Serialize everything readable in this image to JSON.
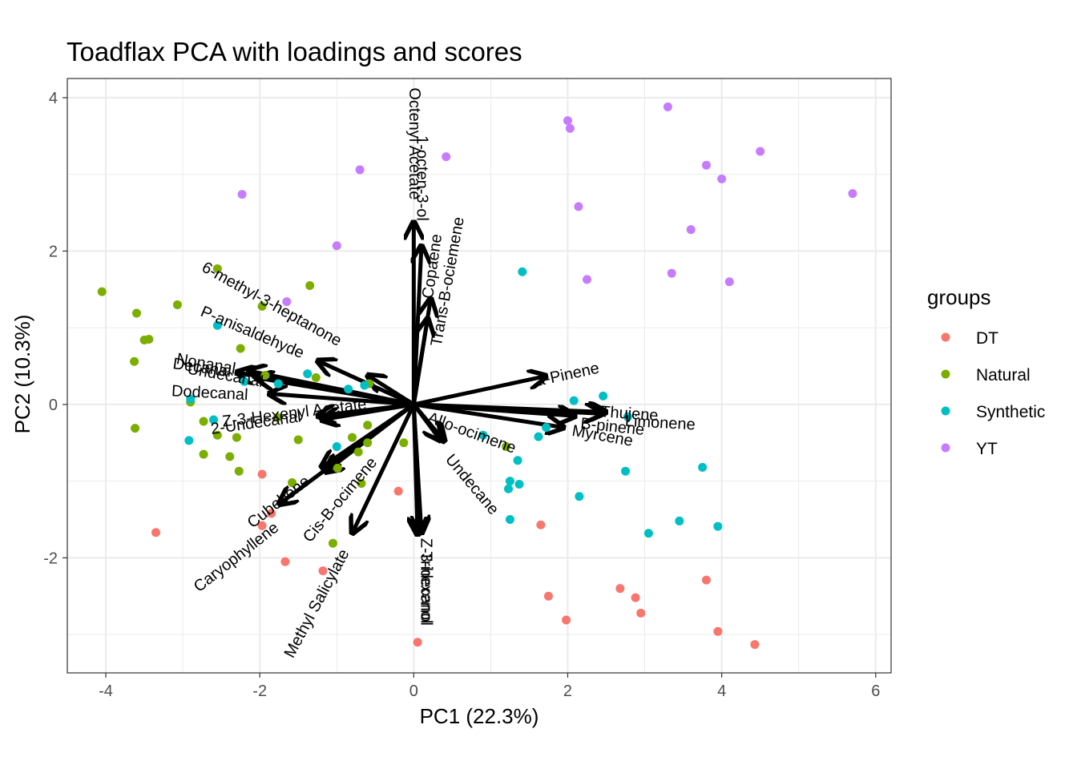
{
  "chart_data": {
    "type": "scatter",
    "title": "Toadflax PCA with loadings and scores",
    "xlabel": "PC1 (22.3%)",
    "ylabel": "PC2 (10.3%)",
    "xlim": [
      -4.5,
      6.2
    ],
    "ylim": [
      -3.5,
      4.25
    ],
    "x_ticks": [
      -4,
      -2,
      0,
      2,
      4,
      6
    ],
    "y_ticks": [
      -2,
      0,
      2,
      4
    ],
    "grid": true,
    "legend": {
      "title": "groups",
      "placement": "right",
      "entries": [
        {
          "name": "DT",
          "color": "#F8766D"
        },
        {
          "name": "Natural",
          "color": "#7CAE00"
        },
        {
          "name": "Synthetic",
          "color": "#00BFC4"
        },
        {
          "name": "YT",
          "color": "#C77CFF"
        }
      ]
    },
    "series": [
      {
        "name": "DT",
        "color": "#F8766D",
        "points": [
          [
            -3.35,
            -1.67
          ],
          [
            -1.97,
            -0.91
          ],
          [
            -1.97,
            -1.58
          ],
          [
            -1.85,
            -1.42
          ],
          [
            -1.67,
            -2.05
          ],
          [
            -1.18,
            -2.17
          ],
          [
            -0.2,
            -1.13
          ],
          [
            0.05,
            -3.1
          ],
          [
            1.65,
            -1.57
          ],
          [
            1.75,
            -2.5
          ],
          [
            1.98,
            -2.81
          ],
          [
            2.68,
            -2.4
          ],
          [
            2.88,
            -2.52
          ],
          [
            2.95,
            -2.72
          ],
          [
            3.8,
            -2.29
          ],
          [
            3.95,
            -2.96
          ],
          [
            4.43,
            -3.13
          ]
        ]
      },
      {
        "name": "Natural",
        "color": "#7CAE00",
        "points": [
          [
            -4.05,
            1.47
          ],
          [
            -3.63,
            0.56
          ],
          [
            -3.62,
            -0.31
          ],
          [
            -3.6,
            1.19
          ],
          [
            -3.5,
            0.84
          ],
          [
            -3.44,
            0.85
          ],
          [
            -3.07,
            1.3
          ],
          [
            -2.9,
            0.03
          ],
          [
            -2.73,
            -0.22
          ],
          [
            -2.73,
            -0.65
          ],
          [
            -2.55,
            -0.4
          ],
          [
            -2.55,
            1.77
          ],
          [
            -2.39,
            -0.68
          ],
          [
            -2.3,
            -0.43
          ],
          [
            -2.27,
            -0.87
          ],
          [
            -2.25,
            0.73
          ],
          [
            -1.97,
            1.28
          ],
          [
            -1.93,
            0.38
          ],
          [
            -1.77,
            -0.17
          ],
          [
            -1.58,
            -1.02
          ],
          [
            -1.5,
            -0.46
          ],
          [
            -1.35,
            1.55
          ],
          [
            -1.27,
            0.35
          ],
          [
            -0.99,
            -0.83
          ],
          [
            -0.8,
            -0.43
          ],
          [
            -1.05,
            -1.81
          ],
          [
            -0.72,
            -0.62
          ],
          [
            -0.68,
            -1.03
          ],
          [
            -0.6,
            -0.5
          ],
          [
            -0.58,
            0.27
          ],
          [
            -0.6,
            -0.27
          ],
          [
            -0.13,
            -0.5
          ],
          [
            1.2,
            -0.55
          ]
        ]
      },
      {
        "name": "Synthetic",
        "color": "#00BFC4",
        "points": [
          [
            -2.92,
            -0.47
          ],
          [
            -2.9,
            0.07
          ],
          [
            -2.6,
            -0.2
          ],
          [
            -2.55,
            1.03
          ],
          [
            -2.2,
            0.3
          ],
          [
            -1.76,
            0.27
          ],
          [
            -1.38,
            0.4
          ],
          [
            -1.0,
            -0.55
          ],
          [
            -0.85,
            0.2
          ],
          [
            -0.64,
            0.25
          ],
          [
            0.9,
            -0.4
          ],
          [
            1.23,
            -1.1
          ],
          [
            1.25,
            -1.0
          ],
          [
            1.25,
            -1.5
          ],
          [
            1.35,
            -0.73
          ],
          [
            1.37,
            -1.04
          ],
          [
            1.41,
            1.73
          ],
          [
            1.62,
            -0.42
          ],
          [
            1.72,
            -0.3
          ],
          [
            2.08,
            0.05
          ],
          [
            2.15,
            -1.2
          ],
          [
            2.46,
            0.11
          ],
          [
            2.75,
            -0.87
          ],
          [
            2.78,
            -0.16
          ],
          [
            3.05,
            -1.68
          ],
          [
            3.45,
            -1.52
          ],
          [
            3.75,
            -0.82
          ],
          [
            3.95,
            -1.59
          ]
        ]
      },
      {
        "name": "YT",
        "color": "#C77CFF",
        "points": [
          [
            -2.23,
            2.74
          ],
          [
            -1.65,
            1.34
          ],
          [
            -1.0,
            2.07
          ],
          [
            -0.7,
            3.06
          ],
          [
            0.42,
            3.23
          ],
          [
            2.0,
            3.7
          ],
          [
            2.03,
            3.6
          ],
          [
            2.14,
            2.58
          ],
          [
            2.25,
            1.63
          ],
          [
            3.3,
            3.88
          ],
          [
            3.35,
            1.71
          ],
          [
            3.6,
            2.28
          ],
          [
            3.8,
            3.12
          ],
          [
            4.0,
            2.94
          ],
          [
            4.1,
            1.6
          ],
          [
            4.5,
            3.3
          ],
          [
            5.7,
            2.75
          ]
        ]
      }
    ],
    "loadings": [
      {
        "name": "Octenyl Acetate",
        "x": 0.0,
        "y": 2.38
      },
      {
        "name": "1-octen-3-ol",
        "x": 0.1,
        "y": 2.07
      },
      {
        "name": "Copaene",
        "x": 0.22,
        "y": 1.38
      },
      {
        "name": "Trans-B-ociemene",
        "x": 0.18,
        "y": 1.12
      },
      {
        "name": "a-Pinene",
        "x": 1.72,
        "y": 0.37
      },
      {
        "name": "Thujene",
        "x": 2.5,
        "y": -0.1
      },
      {
        "name": "Limonene",
        "x": 2.45,
        "y": -0.12
      },
      {
        "name": "B-pinene",
        "x": 2.1,
        "y": -0.15
      },
      {
        "name": "Myrcene",
        "x": 1.95,
        "y": -0.3
      },
      {
        "name": "Allo-ocimene",
        "x": 0.35,
        "y": -0.47
      },
      {
        "name": "Undecane",
        "x": 0.4,
        "y": -0.48
      },
      {
        "name": "Z-3-hexenol",
        "x": 0.1,
        "y": -1.68
      },
      {
        "name": "Tridecanol",
        "x": 0.05,
        "y": -1.7
      },
      {
        "name": "Methyl Salicylate",
        "x": -0.8,
        "y": -1.68
      },
      {
        "name": "Cis-B-ocimene",
        "x": -1.15,
        "y": -0.88
      },
      {
        "name": "Cubebene",
        "x": -1.2,
        "y": -0.82
      },
      {
        "name": "Caryophyllene",
        "x": -1.75,
        "y": -1.3
      },
      {
        "name": "Z-3-Hexenyl Acetate",
        "x": -1.25,
        "y": -0.15
      },
      {
        "name": "2-Undecanal",
        "x": -1.2,
        "y": -0.2
      },
      {
        "name": "Dodecanal",
        "x": -1.88,
        "y": 0.14
      },
      {
        "name": "Decanal",
        "x": -2.3,
        "y": 0.42
      },
      {
        "name": "Nonanal",
        "x": -2.15,
        "y": 0.44
      },
      {
        "name": "Undecanal",
        "x": -2.05,
        "y": 0.35
      },
      {
        "name": "P-anisaldehyde",
        "x": -1.25,
        "y": 0.57
      },
      {
        "name": "6-methyl-3-heptanone",
        "x": -0.6,
        "y": 0.38
      }
    ],
    "loading_labels": [
      {
        "name": "Octenyl Acetate",
        "x": 0.0,
        "y": 3.4,
        "rotate": 90
      },
      {
        "name": "1-octen-3-ol",
        "x": 0.1,
        "y": 2.95,
        "rotate": 90
      },
      {
        "name": "Copaene",
        "x": 0.25,
        "y": 1.8,
        "rotate": -82
      },
      {
        "name": "Trans-B-ociemene",
        "x": 0.45,
        "y": 1.6,
        "rotate": -80
      },
      {
        "name": "a-Pinene",
        "x": 2.0,
        "y": 0.38,
        "rotate": -12
      },
      {
        "name": "Thujene",
        "x": 2.8,
        "y": -0.13,
        "rotate": 4
      },
      {
        "name": "Limonene",
        "x": 3.2,
        "y": -0.25,
        "rotate": 3
      },
      {
        "name": "B-pinene",
        "x": 2.58,
        "y": -0.3,
        "rotate": 6
      },
      {
        "name": "Myrcene",
        "x": 2.45,
        "y": -0.42,
        "rotate": 10
      },
      {
        "name": "Allo-ocimene",
        "x": 0.75,
        "y": -0.38,
        "rotate": 20
      },
      {
        "name": "Undecane",
        "x": 0.75,
        "y": -1.05,
        "rotate": 50
      },
      {
        "name": "Z-3-hexenol",
        "x": 0.15,
        "y": -2.3,
        "rotate": 90
      },
      {
        "name": "Tridecanol",
        "x": 0.15,
        "y": -2.4,
        "rotate": 90
      },
      {
        "name": "Methyl Salicylate",
        "x": -1.25,
        "y": -2.6,
        "rotate": -62
      },
      {
        "name": "Cis-B-ocimene",
        "x": -0.95,
        "y": -1.25,
        "rotate": -50
      },
      {
        "name": "Cubebene",
        "x": -1.75,
        "y": -1.28,
        "rotate": -38
      },
      {
        "name": "Caryophyllene",
        "x": -2.3,
        "y": -2.0,
        "rotate": -38
      },
      {
        "name": "Z-3-Hexenyl Acetate",
        "x": -1.55,
        "y": -0.12,
        "rotate": -7
      },
      {
        "name": "2-Undecanal",
        "x": -2.05,
        "y": -0.25,
        "rotate": -8
      },
      {
        "name": "Dodecanal",
        "x": -2.65,
        "y": 0.14,
        "rotate": 3
      },
      {
        "name": "Decanal",
        "x": -2.75,
        "y": 0.47,
        "rotate": 8
      },
      {
        "name": "Nonanal",
        "x": -2.7,
        "y": 0.52,
        "rotate": 10
      },
      {
        "name": "Undecanal",
        "x": -2.45,
        "y": 0.37,
        "rotate": 10
      },
      {
        "name": "P-anisaldehyde",
        "x": -2.1,
        "y": 0.93,
        "rotate": 23
      },
      {
        "name": "6-methyl-3-heptanone",
        "x": -1.85,
        "y": 1.3,
        "rotate": 29
      }
    ]
  }
}
